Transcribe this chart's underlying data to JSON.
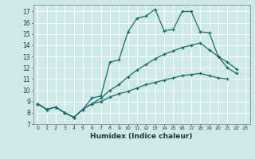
{
  "xlabel": "Humidex (Indice chaleur)",
  "ylabel": "",
  "bg_color": "#cfe8e8",
  "grid_color": "#ffffff",
  "line_color": "#1a6b6b",
  "xlim": [
    -0.5,
    23.5
  ],
  "ylim": [
    7,
    17.6
  ],
  "xticks": [
    0,
    1,
    2,
    3,
    4,
    5,
    6,
    7,
    8,
    9,
    10,
    11,
    12,
    13,
    14,
    15,
    16,
    17,
    18,
    19,
    20,
    21,
    22,
    23
  ],
  "yticks": [
    7,
    8,
    9,
    10,
    11,
    12,
    13,
    14,
    15,
    16,
    17
  ],
  "line1": {
    "x": [
      0,
      1,
      2,
      3,
      4,
      5,
      6,
      7,
      8,
      9,
      10,
      11,
      12,
      13,
      14,
      15,
      16,
      17,
      18,
      19,
      20,
      21,
      22
    ],
    "y": [
      8.8,
      8.3,
      8.5,
      8.0,
      7.6,
      8.3,
      9.3,
      9.5,
      12.5,
      12.7,
      15.2,
      16.4,
      16.6,
      17.2,
      15.3,
      15.4,
      17.0,
      17.0,
      15.2,
      15.1,
      13.0,
      12.0,
      11.5
    ]
  },
  "line2": {
    "x": [
      0,
      1,
      2,
      3,
      4,
      5,
      6,
      7,
      8,
      9,
      10,
      11,
      12,
      13,
      14,
      15,
      16,
      17,
      18,
      19,
      20,
      21,
      22
    ],
    "y": [
      8.8,
      8.3,
      8.5,
      8.0,
      7.6,
      8.3,
      8.8,
      9.3,
      10.0,
      10.5,
      11.2,
      11.8,
      12.3,
      12.8,
      13.2,
      13.5,
      13.8,
      14.0,
      14.2,
      13.6,
      13.0,
      12.5,
      11.9
    ]
  },
  "line3": {
    "x": [
      0,
      1,
      2,
      3,
      4,
      5,
      6,
      7,
      8,
      9,
      10,
      11,
      12,
      13,
      14,
      15,
      16,
      17,
      18,
      19,
      20,
      21
    ],
    "y": [
      8.8,
      8.3,
      8.5,
      8.0,
      7.6,
      8.3,
      8.8,
      9.0,
      9.4,
      9.7,
      9.9,
      10.2,
      10.5,
      10.7,
      10.9,
      11.1,
      11.3,
      11.4,
      11.5,
      11.3,
      11.1,
      11.0
    ]
  }
}
